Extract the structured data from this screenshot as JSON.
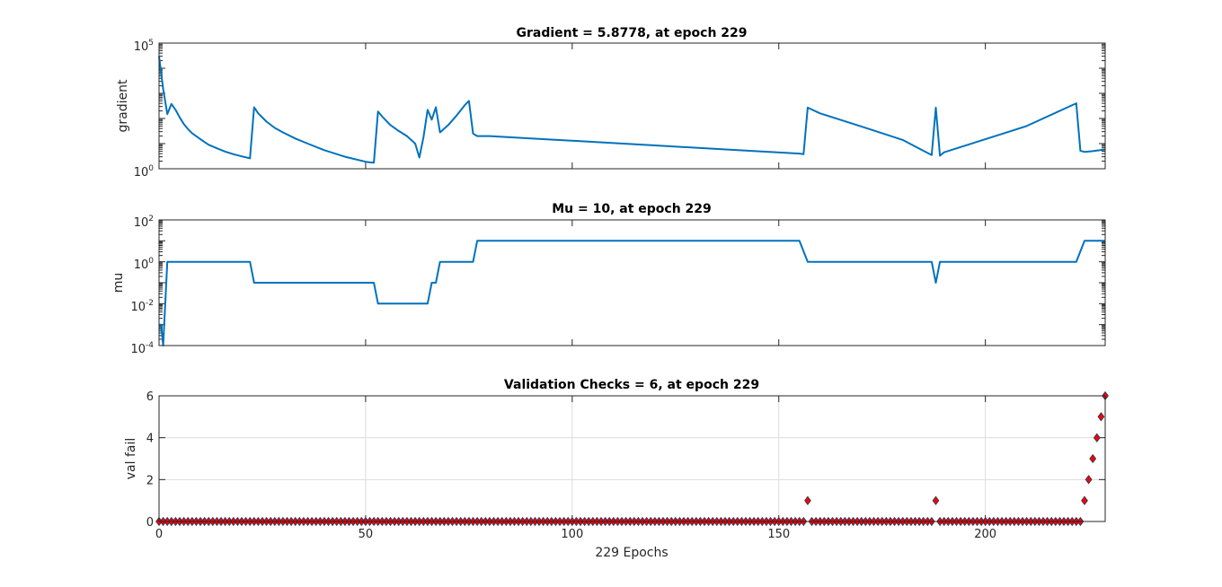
{
  "colors": {
    "line": "#0072bd",
    "marker_fill": "#ff0000",
    "marker_edge": "#1a3a5c",
    "axis": "#262626",
    "grid": "#dcdcdc"
  },
  "xlabel": "229 Epochs",
  "chart_data": [
    {
      "type": "line",
      "title": "Gradient = 5.8778, at epoch 229",
      "ylabel": "gradient",
      "xlim": [
        0,
        229
      ],
      "ylim": [
        1,
        100000
      ],
      "yscale": "log",
      "grid": false,
      "yticks": [
        {
          "base": "10",
          "exp": "0"
        },
        {
          "base": "10",
          "exp": "5"
        }
      ],
      "x": [
        0,
        1,
        2,
        3,
        4,
        5,
        6,
        7,
        8,
        10,
        12,
        14,
        16,
        18,
        20,
        22,
        23,
        24,
        26,
        28,
        30,
        33,
        36,
        40,
        45,
        50,
        51,
        52,
        53,
        54,
        56,
        58,
        60,
        62,
        63,
        64,
        65,
        66,
        67,
        68,
        70,
        72,
        74,
        75,
        76,
        77,
        80,
        90,
        100,
        120,
        140,
        155,
        156,
        157,
        160,
        170,
        180,
        187,
        188,
        189,
        190,
        200,
        210,
        222,
        223,
        224,
        226,
        229
      ],
      "y": [
        30000,
        1500,
        150,
        380,
        220,
        110,
        60,
        38,
        26,
        15,
        9,
        6.5,
        4.8,
        3.8,
        3.1,
        2.6,
        280,
        160,
        75,
        42,
        28,
        16,
        10,
        5.5,
        3.0,
        1.9,
        1.8,
        1.75,
        190,
        120,
        55,
        32,
        20,
        10,
        2.8,
        18,
        220,
        90,
        280,
        28,
        55,
        130,
        340,
        500,
        25,
        20,
        20,
        16,
        13,
        8.5,
        5.5,
        4.0,
        3.8,
        270,
        160,
        48,
        14,
        3.5,
        270,
        3.3,
        4.5,
        15,
        50,
        400,
        5.2,
        4.7,
        5.0,
        5.8778
      ]
    },
    {
      "type": "line",
      "title": "Mu = 10, at epoch 229",
      "ylabel": "mu",
      "xlim": [
        0,
        229
      ],
      "ylim": [
        0.0001,
        100
      ],
      "yscale": "log",
      "grid": false,
      "yticks": [
        {
          "base": "10",
          "exp": "-4"
        },
        {
          "base": "10",
          "exp": "-2"
        },
        {
          "base": "10",
          "exp": "0"
        },
        {
          "base": "10",
          "exp": "2"
        }
      ],
      "x": [
        0,
        0.5,
        1,
        2,
        22,
        23,
        52,
        53,
        65,
        66,
        67,
        68,
        76,
        77,
        155,
        157,
        187,
        188,
        189,
        222,
        224,
        229
      ],
      "y": [
        0.001,
        0.001,
        0.0001,
        1,
        1,
        0.1,
        0.1,
        0.01,
        0.01,
        0.1,
        0.1,
        1,
        1,
        10,
        10,
        1,
        1,
        0.1,
        1,
        1,
        10,
        10
      ]
    },
    {
      "type": "scatter",
      "title": "Validation Checks = 6, at epoch 229",
      "ylabel": "val fail",
      "xlim": [
        0,
        229
      ],
      "ylim": [
        0,
        6
      ],
      "yscale": "linear",
      "grid": true,
      "xticks": [
        "0",
        "50",
        "100",
        "150",
        "200"
      ],
      "yticks": [
        "0",
        "2",
        "4",
        "6"
      ],
      "nonzero": [
        [
          157,
          1
        ],
        [
          188,
          1
        ],
        [
          224,
          1
        ],
        [
          225,
          2
        ],
        [
          226,
          3
        ],
        [
          227,
          4
        ],
        [
          228,
          5
        ],
        [
          229,
          6
        ]
      ]
    }
  ]
}
